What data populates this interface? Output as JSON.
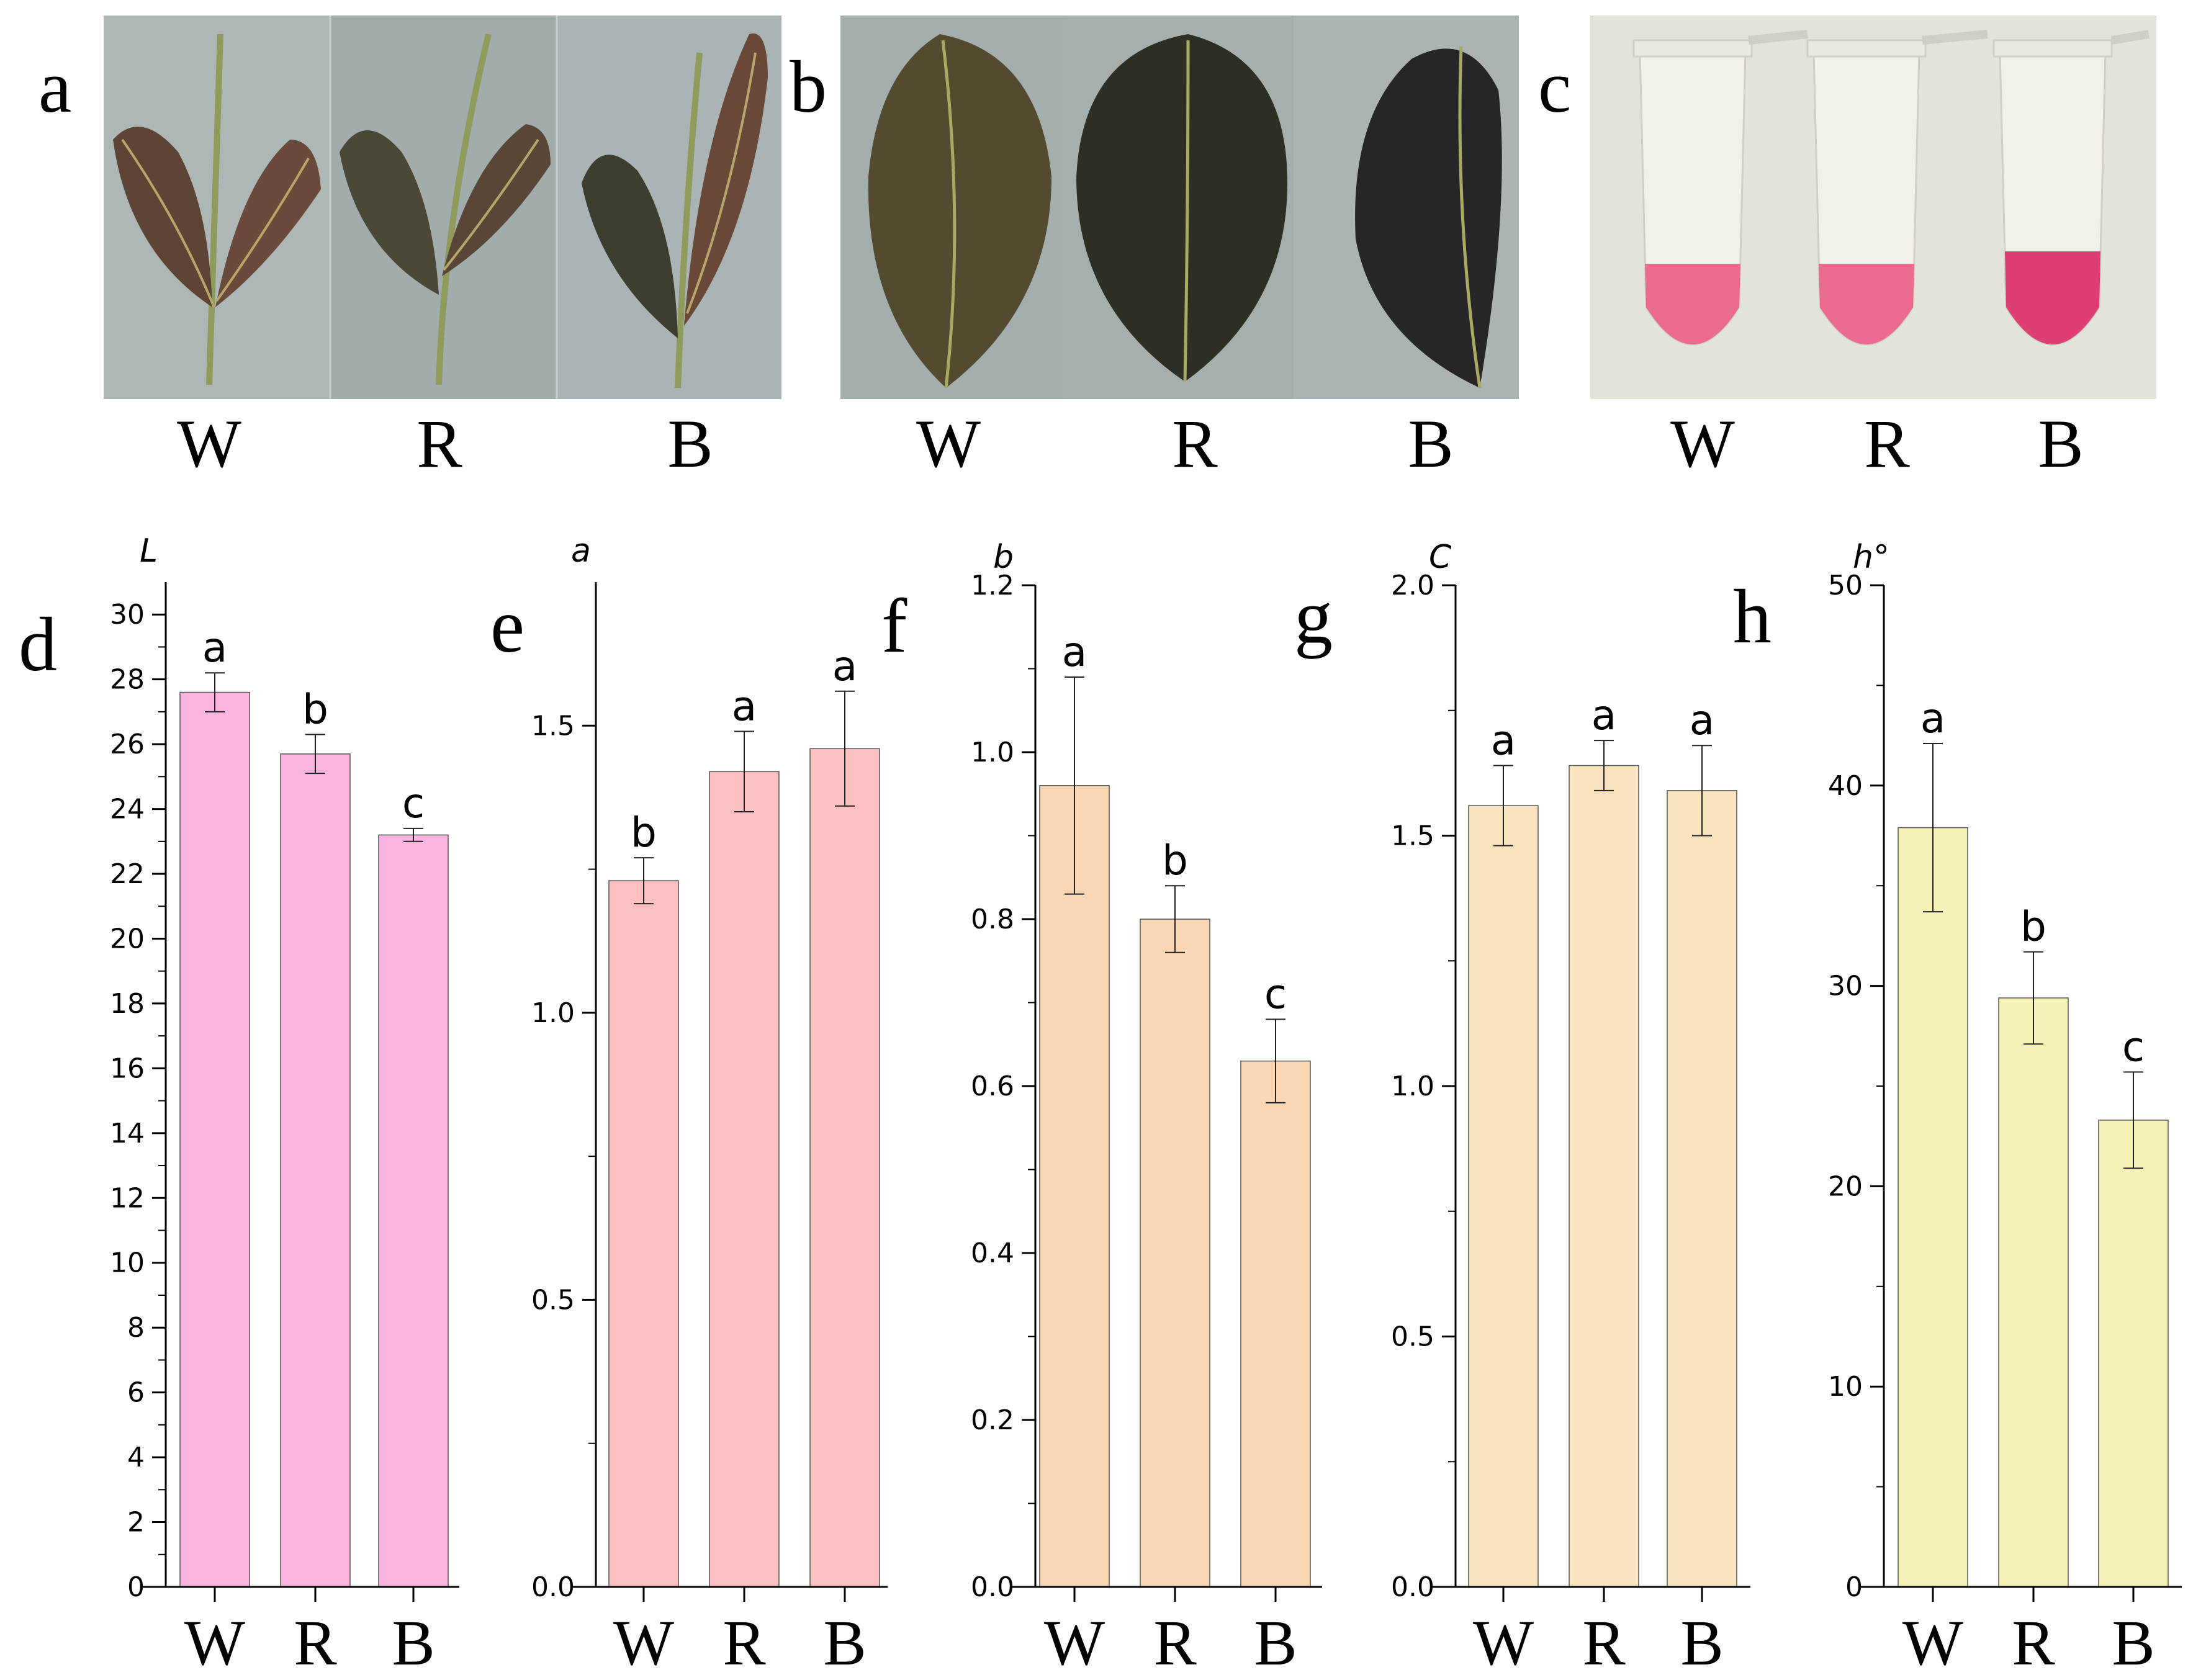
{
  "photo_panels": [
    {
      "letter": "a",
      "labels": [
        "W",
        "R",
        "B"
      ],
      "colors": {
        "bg": "#a9b3b3",
        "leaf": "#5a4a36",
        "stem": "#8e9b5a"
      }
    },
    {
      "letter": "b",
      "labels": [
        "W",
        "R",
        "B"
      ],
      "colors": {
        "bg": "#a8b1b2",
        "leaf": "#3d3a2a",
        "vein": "#a8aa62"
      }
    },
    {
      "letter": "c",
      "labels": [
        "W",
        "R",
        "B"
      ],
      "colors": {
        "bg": "#e6e6da",
        "tube": "#f2f0e8",
        "liquid": [
          "#eb6b8f",
          "#ea6a90",
          "#dd3f74"
        ]
      }
    }
  ],
  "chart_data": [
    {
      "letter": "d",
      "type": "bar",
      "ylabel": "L",
      "categories": [
        "W",
        "R",
        "B"
      ],
      "values": [
        27.6,
        25.7,
        23.2
      ],
      "errors": [
        0.6,
        0.6,
        0.2
      ],
      "significance": [
        "a",
        "b",
        "c"
      ],
      "ylim": [
        0,
        31
      ],
      "yticks": [
        0,
        2,
        4,
        6,
        8,
        10,
        12,
        14,
        16,
        18,
        20,
        22,
        24,
        26,
        28,
        30
      ],
      "ytick_labels": [
        "0",
        "2",
        "4",
        "6",
        "8",
        "10",
        "12",
        "14",
        "16",
        "18",
        "20",
        "22",
        "24",
        "26",
        "28",
        "30"
      ],
      "color": "#fbb4e0"
    },
    {
      "letter": "e",
      "type": "bar",
      "ylabel": "a",
      "categories": [
        "W",
        "R",
        "B"
      ],
      "values": [
        1.23,
        1.42,
        1.46
      ],
      "errors": [
        0.04,
        0.07,
        0.1
      ],
      "significance": [
        "b",
        "a",
        "a"
      ],
      "ylim": [
        0,
        1.75
      ],
      "yticks": [
        0,
        0.5,
        1.0,
        1.5
      ],
      "ytick_labels": [
        "0.0",
        "0.5",
        "1.0",
        "1.5"
      ],
      "color": "#fcc0c0"
    },
    {
      "letter": "f",
      "type": "bar",
      "ylabel": "b",
      "categories": [
        "W",
        "R",
        "B"
      ],
      "values": [
        0.96,
        0.8,
        0.63
      ],
      "errors": [
        0.13,
        0.04,
        0.05
      ],
      "significance": [
        "a",
        "b",
        "c"
      ],
      "ylim": [
        0,
        1.2
      ],
      "yticks": [
        0,
        0.2,
        0.4,
        0.6,
        0.8,
        1.0,
        1.2
      ],
      "ytick_labels": [
        "0.0",
        "0.2",
        "0.4",
        "0.6",
        "0.8",
        "1.0",
        "1.2"
      ],
      "color": "#f9d6b4"
    },
    {
      "letter": "g",
      "type": "bar",
      "ylabel": "C",
      "categories": [
        "W",
        "R",
        "B"
      ],
      "values": [
        1.56,
        1.64,
        1.59
      ],
      "errors": [
        0.08,
        0.05,
        0.09
      ],
      "significance": [
        "a",
        "a",
        "a"
      ],
      "ylim": [
        0,
        2.0
      ],
      "yticks": [
        0,
        0.5,
        1.0,
        1.5,
        2.0
      ],
      "ytick_labels": [
        "0.0",
        "0.5",
        "1.0",
        "1.5",
        "2.0"
      ],
      "color": "#faE4bf"
    },
    {
      "letter": "h",
      "type": "bar",
      "ylabel": "h°",
      "categories": [
        "W",
        "R",
        "B"
      ],
      "values": [
        37.9,
        29.4,
        23.3
      ],
      "errors": [
        4.2,
        2.3,
        2.4
      ],
      "significance": [
        "a",
        "b",
        "c"
      ],
      "ylim": [
        0,
        50
      ],
      "yticks": [
        0,
        10,
        20,
        30,
        40,
        50
      ],
      "ytick_labels": [
        "0",
        "10",
        "20",
        "30",
        "40",
        "50"
      ],
      "color": "#f6f1b6"
    }
  ]
}
